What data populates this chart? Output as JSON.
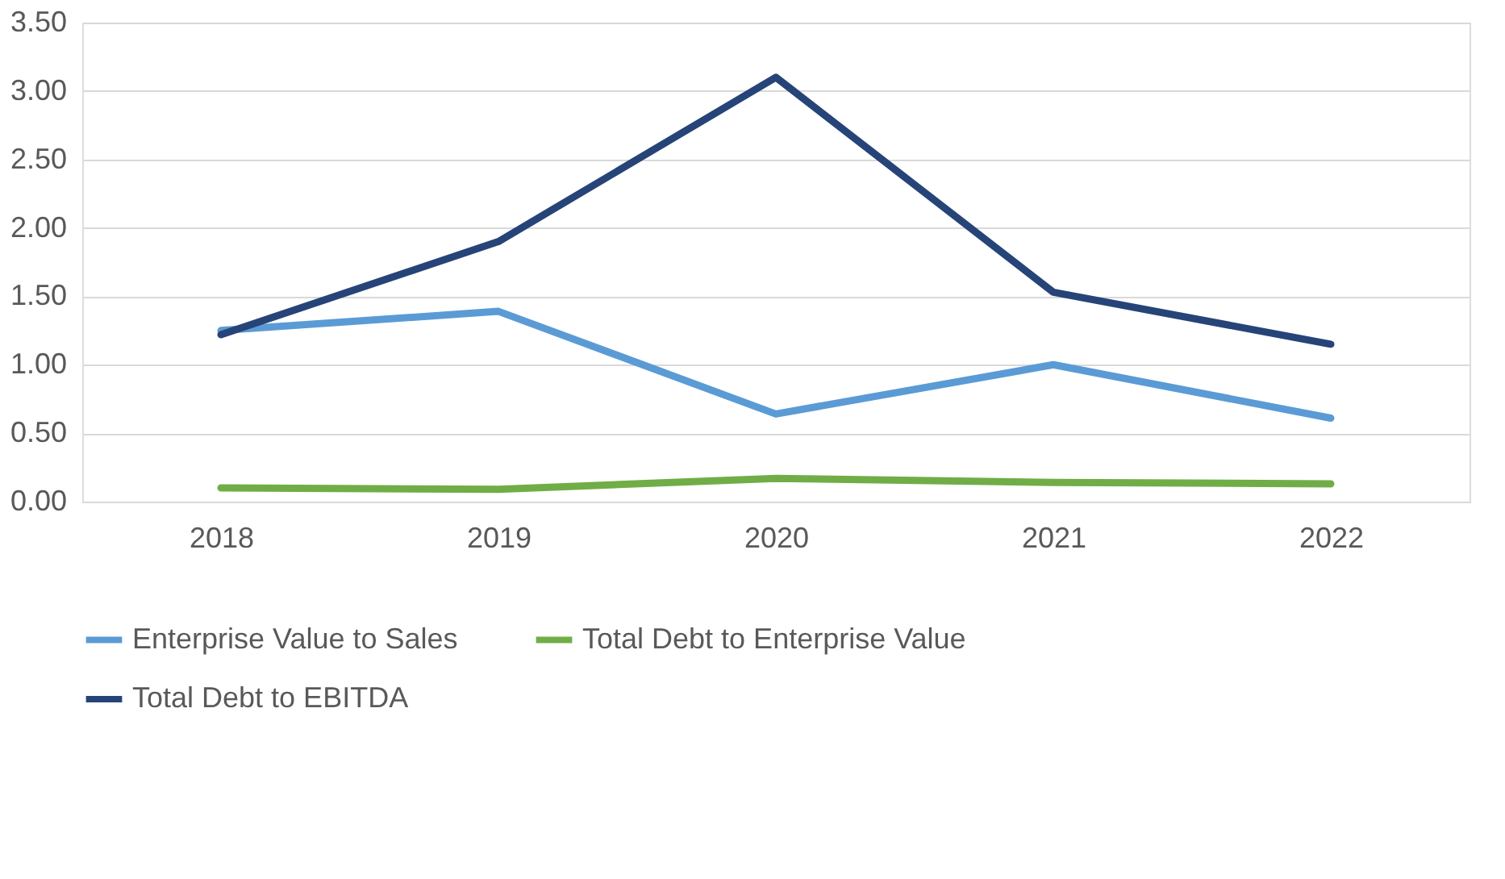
{
  "chart_data": {
    "type": "line",
    "categories": [
      "2018",
      "2019",
      "2020",
      "2021",
      "2022"
    ],
    "series": [
      {
        "name": "Enterprise Value to Sales",
        "color": "#5b9bd5",
        "values": [
          1.25,
          1.39,
          0.64,
          1.0,
          0.61
        ]
      },
      {
        "name": "Total Debt to Enterprise Value",
        "color": "#70ad47",
        "values": [
          0.1,
          0.09,
          0.17,
          0.14,
          0.13
        ]
      },
      {
        "name": "Total Debt to EBITDA",
        "color": "#264478",
        "values": [
          1.22,
          1.9,
          3.1,
          1.53,
          1.15
        ]
      }
    ],
    "ylim": [
      0,
      3.5
    ],
    "yticks": [
      {
        "value": 0,
        "label": "0.00"
      },
      {
        "value": 0.5,
        "label": "0.50"
      },
      {
        "value": 1,
        "label": "1.00"
      },
      {
        "value": 1.5,
        "label": "1.50"
      },
      {
        "value": 2,
        "label": "2.00"
      },
      {
        "value": 2.5,
        "label": "2.50"
      },
      {
        "value": 3,
        "label": "3.00"
      },
      {
        "value": 3.5,
        "label": "3.50"
      }
    ],
    "grid": "y",
    "legend": "bottom",
    "marker": "none",
    "line_style": "solid"
  }
}
